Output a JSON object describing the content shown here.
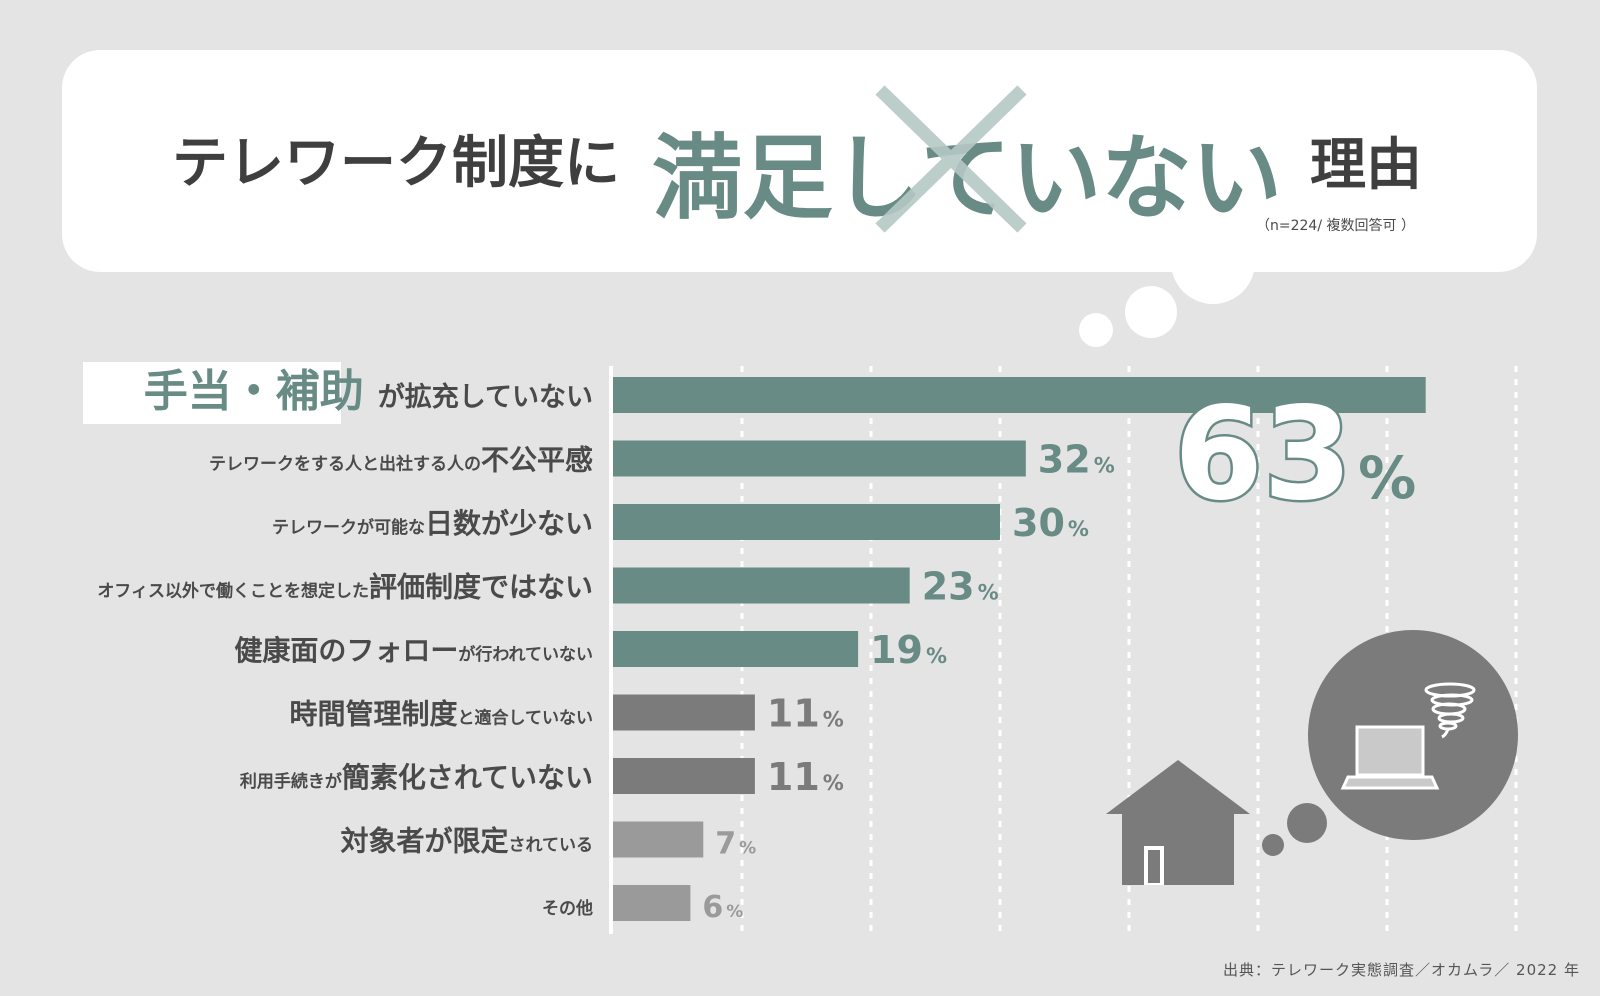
{
  "colors": {
    "background": "#e4e4e4",
    "bubble": "#ffffff",
    "teal": "#698b86",
    "teal_light": "#b5c9c5",
    "dark_gray": "#7b7b7b",
    "light_gray": "#9a9a9a",
    "text": "#4a4a4a"
  },
  "title": {
    "prefix": "テレワーク制度に",
    "emphasis": "満足していない",
    "suffix": "理由",
    "note": "（n=224/ 複数回答可 ）"
  },
  "chart_data": {
    "type": "bar",
    "orientation": "horizontal",
    "unit": "%",
    "grid": true,
    "categories": [
      "手当・補助が拡充していない",
      "テレワークをする人と出社する人の不公平感",
      "テレワークが可能な日数が少ない",
      "オフィス以外で働くことを想定した評価制度ではない",
      "健康面のフォローが行われていない",
      "時間管理制度と適合していない",
      "利用手続きが簡素化されていない",
      "対象者が限定されている",
      "その他"
    ],
    "label_parts": [
      {
        "small": "",
        "big": "手当・補助",
        "tail": "が拡充していない",
        "highlight": true
      },
      {
        "small": "テレワークをする人と出社する人の",
        "big": "不公平感",
        "tail": ""
      },
      {
        "small": "テレワークが可能な",
        "big": "日数が少ない",
        "tail": ""
      },
      {
        "small": "オフィス以外で働くことを想定した",
        "big": "評価制度ではない",
        "tail": ""
      },
      {
        "small": "",
        "big": "健康面のフォロー",
        "tail": "が行われていない"
      },
      {
        "small": "",
        "big": "時間管理制度",
        "tail": "と適合していない"
      },
      {
        "small": "利用手続きが",
        "big": "簡素化されていない",
        "tail": ""
      },
      {
        "small": "",
        "big": "対象者が限定",
        "tail": "されている"
      },
      {
        "small": "その他",
        "big": "",
        "tail": ""
      }
    ],
    "values": [
      63,
      32,
      30,
      23,
      19,
      11,
      11,
      7,
      6
    ],
    "value_labels": [
      "63",
      "32",
      "30",
      "23",
      "19",
      "11",
      "11",
      "7",
      "6"
    ],
    "bar_colors": [
      "#698b86",
      "#698b86",
      "#698b86",
      "#698b86",
      "#698b86",
      "#7b7b7b",
      "#7b7b7b",
      "#9a9a9a",
      "#9a9a9a"
    ]
  },
  "source": "出典：テレワーク実態調査／オカムラ／ 2022 年"
}
